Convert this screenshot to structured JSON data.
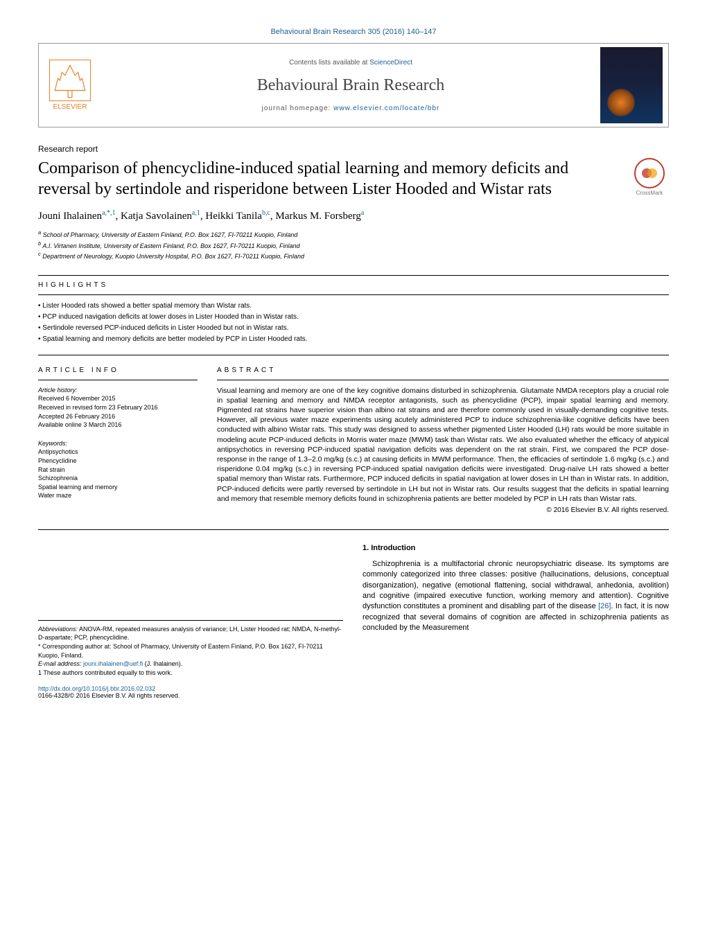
{
  "journal_link_top": "Behavioural Brain Research 305 (2016) 140–147",
  "header": {
    "contents_prefix": "Contents lists available at ",
    "contents_link": "ScienceDirect",
    "journal_name": "Behavioural Brain Research",
    "homepage_prefix": "journal homepage: ",
    "homepage_link": "www.elsevier.com/locate/bbr",
    "elsevier": "ELSEVIER"
  },
  "article_type": "Research report",
  "title": "Comparison of phencyclidine-induced spatial learning and memory deficits and reversal by sertindole and risperidone between Lister Hooded and Wistar rats",
  "crossmark": "CrossMark",
  "authors_html": "Jouni Ihalainen",
  "authors": [
    {
      "name": "Jouni Ihalainen",
      "sup": "a,*,1"
    },
    {
      "name": "Katja Savolainen",
      "sup": "a,1"
    },
    {
      "name": "Heikki Tanila",
      "sup": "b,c"
    },
    {
      "name": "Markus M. Forsberg",
      "sup": "a"
    }
  ],
  "affiliations": [
    "a School of Pharmacy, University of Eastern Finland, P.O. Box 1627, FI-70211 Kuopio, Finland",
    "b A.I. Virtanen Institute, University of Eastern Finland, P.O. Box 1627, FI-70211 Kuopio, Finland",
    "c Department of Neurology, Kuopio University Hospital, P.O. Box 1627, FI-70211 Kuopio, Finland"
  ],
  "highlights_label": "highlights",
  "highlights": [
    "Lister Hooded rats showed a better spatial memory than Wistar rats.",
    "PCP induced navigation deficits at lower doses in Lister Hooded than in Wistar rats.",
    "Sertindole reversed PCP-induced deficits in Lister Hooded but not in Wistar rats.",
    "Spatial learning and memory deficits are better modeled by PCP in Lister Hooded rats."
  ],
  "article_info_label": "article info",
  "abstract_label": "abstract",
  "article_info": {
    "history_head": "Article history:",
    "received": "Received 6 November 2015",
    "revised": "Received in revised form 23 February 2016",
    "accepted": "Accepted 26 February 2016",
    "online": "Available online 3 March 2016",
    "keywords_head": "Keywords:",
    "keywords": [
      "Antipsychotics",
      "Phencyclidine",
      "Rat strain",
      "Schizophrenia",
      "Spatial learning and memory",
      "Water maze"
    ]
  },
  "abstract": "Visual learning and memory are one of the key cognitive domains disturbed in schizophrenia. Glutamate NMDA receptors play a crucial role in spatial learning and memory and NMDA receptor antagonists, such as phencyclidine (PCP), impair spatial learning and memory. Pigmented rat strains have superior vision than albino rat strains and are therefore commonly used in visually-demanding cognitive tests. However, all previous water maze experiments using acutely administered PCP to induce schizophrenia-like cognitive deficits have been conducted with albino Wistar rats. This study was designed to assess whether pigmented Lister Hooded (LH) rats would be more suitable in modeling acute PCP-induced deficits in Morris water maze (MWM) task than Wistar rats. We also evaluated whether the efficacy of atypical antipsychotics in reversing PCP-induced spatial navigation deficits was dependent on the rat strain. First, we compared the PCP dose-response in the range of 1.3–2.0 mg/kg (s.c.) at causing deficits in MWM performance. Then, the efficacies of sertindole 1.6 mg/kg (s.c.) and risperidone 0.04 mg/kg (s.c.) in reversing PCP-induced spatial navigation deficits were investigated. Drug-naïve LH rats showed a better spatial memory than Wistar rats. Furthermore, PCP induced deficits in spatial navigation at lower doses in LH than in Wistar rats. In addition, PCP-induced deficits were partly reversed by sertindole in LH but not in Wistar rats. Our results suggest that the deficits in spatial learning and memory that resemble memory deficits found in schizophrenia patients are better modeled by PCP in LH rats than Wistar rats.",
  "copyright": "© 2016 Elsevier B.V. All rights reserved.",
  "intro_head": "1. Introduction",
  "intro_text": "Schizophrenia is a multifactorial chronic neuropsychiatric disease. Its symptoms are commonly categorized into three classes: positive (hallucinations, delusions, conceptual disorganization), negative (emotional flattening, social withdrawal, anhedonia, avolition) and cognitive (impaired executive function, working memory and attention). Cognitive dysfunction constitutes a prominent and disabling part of the disease ",
  "intro_cite": "[26]",
  "intro_text2": ". In fact, it is now recognized that several domains of cognition are affected in schizophrenia patients as concluded by the Measurement",
  "footnotes": {
    "abbrev_label": "Abbreviations:",
    "abbrev": " ANOVA-RM, repeated measures analysis of variance; LH, Lister Hooded rat; NMDA, N-methyl-D-aspartate; PCP, phencyclidine.",
    "corr": "* Corresponding author at: School of Pharmacy, University of Eastern Finland, P.O. Box 1627, FI-70211 Kuopio, Finland.",
    "email_label": "E-mail address: ",
    "email": "jouni.ihalainen@uef.fi",
    "email_suffix": " (J. Ihalainen).",
    "equal": "1 These authors contributed equally to this work."
  },
  "doi": {
    "link": "http://dx.doi.org/10.1016/j.bbr.2016.02.032",
    "issn": "0166-4328/© 2016 Elsevier B.V. All rights reserved."
  },
  "colors": {
    "link": "#1a6091",
    "accent": "#e67e22",
    "crossmark": "#c0392b",
    "text": "#000000",
    "muted": "#555555",
    "background": "#ffffff"
  },
  "typography": {
    "title_fontsize": 24,
    "journal_name_fontsize": 24,
    "body_fontsize": 11,
    "small_fontsize": 9,
    "font_serif": "Georgia",
    "font_sans": "Arial"
  }
}
